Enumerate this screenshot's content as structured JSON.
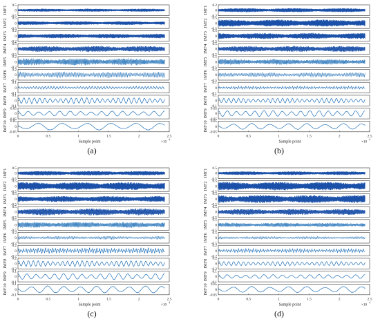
{
  "chart_data": [
    {
      "type": "line",
      "panel_label": "(a)",
      "xlabel": "Sample point",
      "x_exponent_label": "×10",
      "x_exponent_power": "4",
      "x_ticks": [
        "0",
        "0.5",
        "1",
        "1.5",
        "2",
        "2.5"
      ],
      "xlim": [
        0,
        2.5
      ],
      "series": [
        {
          "name": "IMF1",
          "ylim": [
            -0.5,
            0.5
          ],
          "y_ticks": [
            "0.5",
            "0",
            "-0.5"
          ],
          "amplitude": 0.15,
          "cycles": 1400
        },
        {
          "name": "IMF2",
          "ylim": [
            -0.5,
            0.5
          ],
          "y_ticks": [
            "0.5",
            "0",
            "-0.5"
          ],
          "amplitude": 0.18,
          "cycles": 900
        },
        {
          "name": "IMF3",
          "ylim": [
            -0.2,
            0.2
          ],
          "y_ticks": [
            "0.2",
            "0",
            "-0.2"
          ],
          "amplitude": 0.09,
          "cycles": 600
        },
        {
          "name": "IMF4",
          "ylim": [
            -0.5,
            0.5
          ],
          "y_ticks": [
            "0.5",
            "0",
            "-0.5"
          ],
          "amplitude": 0.3,
          "cycles": 400
        },
        {
          "name": "IMF5",
          "ylim": [
            -0.2,
            0.2
          ],
          "y_ticks": [
            "0.2",
            "0",
            "-0.2"
          ],
          "amplitude": 0.14,
          "cycles": 220
        },
        {
          "name": "IMF6",
          "ylim": [
            -0.2,
            0.2
          ],
          "y_ticks": [
            "0.2",
            "0",
            "-0.2"
          ],
          "amplitude": 0.13,
          "cycles": 120
        },
        {
          "name": "IMF7",
          "ylim": [
            -0.1,
            0.1
          ],
          "y_ticks": [
            "0.1",
            "0",
            "-0.1"
          ],
          "amplitude": 0.03,
          "cycles": 50
        },
        {
          "name": "IMF8",
          "ylim": [
            -0.1,
            0.1
          ],
          "y_ticks": [
            "0.1",
            "0",
            "-0.1"
          ],
          "amplitude": 0.06,
          "cycles": 28
        },
        {
          "name": "IMF9",
          "ylim": [
            -0.05,
            0.05
          ],
          "y_ticks": [
            "0.05",
            "0",
            "-0.05"
          ],
          "amplitude": 0.025,
          "cycles": 14
        },
        {
          "name": "IMF10",
          "ylim": [
            -0.05,
            0.05
          ],
          "y_ticks": [
            "0.05",
            "0",
            "-0.05"
          ],
          "amplitude": 0.035,
          "cycles": 6
        }
      ]
    },
    {
      "type": "line",
      "panel_label": "(b)",
      "xlabel": "Sample point",
      "x_exponent_label": "×10",
      "x_exponent_power": "4",
      "x_ticks": [
        "0",
        "0.5",
        "1",
        "1.5",
        "2",
        "2.5"
      ],
      "xlim": [
        0,
        2.5
      ],
      "series": [
        {
          "name": "IMF1",
          "ylim": [
            -0.2,
            0.2
          ],
          "y_ticks": [
            "0.2",
            "0",
            "-0.2"
          ],
          "amplitude": 0.08,
          "cycles": 1400
        },
        {
          "name": "IMF2",
          "ylim": [
            -0.5,
            0.5
          ],
          "y_ticks": [
            "0.5",
            "0",
            "-0.5"
          ],
          "amplitude": 0.35,
          "cycles": 900
        },
        {
          "name": "IMF3",
          "ylim": [
            -0.5,
            0.5
          ],
          "y_ticks": [
            "0.5",
            "0",
            "-0.5"
          ],
          "amplitude": 0.3,
          "cycles": 600
        },
        {
          "name": "IMF4",
          "ylim": [
            -0.5,
            0.5
          ],
          "y_ticks": [
            "0.5",
            "0",
            "-0.5"
          ],
          "amplitude": 0.3,
          "cycles": 400
        },
        {
          "name": "IMF5",
          "ylim": [
            -0.5,
            0.5
          ],
          "y_ticks": [
            "0.5",
            "0",
            "-0.5"
          ],
          "amplitude": 0.28,
          "cycles": 220
        },
        {
          "name": "IMF6",
          "ylim": [
            -0.5,
            0.5
          ],
          "y_ticks": [
            "0.5",
            "0",
            "-0.5"
          ],
          "amplitude": 0.25,
          "cycles": 120
        },
        {
          "name": "IMF7",
          "ylim": [
            -0.1,
            0.1
          ],
          "y_ticks": [
            "0.1",
            "0",
            "-0.1"
          ],
          "amplitude": 0.03,
          "cycles": 60
        },
        {
          "name": "IMF8",
          "ylim": [
            -0.1,
            0.1
          ],
          "y_ticks": [
            "0.1",
            "0",
            "-0.1"
          ],
          "amplitude": 0.05,
          "cycles": 30
        },
        {
          "name": "IMF9",
          "ylim": [
            -0.05,
            0.05
          ],
          "y_ticks": [
            "0.05",
            "0",
            "-0.05"
          ],
          "amplitude": 0.03,
          "cycles": 16
        },
        {
          "name": "IMF10",
          "ylim": [
            -0.05,
            0.05
          ],
          "y_ticks": [
            "0.05",
            "0",
            "-0.05"
          ],
          "amplitude": 0.03,
          "cycles": 8
        }
      ]
    },
    {
      "type": "line",
      "panel_label": "(c)",
      "xlabel": "Sample point",
      "x_exponent_label": "×10",
      "x_exponent_power": "4",
      "x_ticks": [
        "0",
        "0.5",
        "1",
        "1.5",
        "2",
        "2.5"
      ],
      "xlim": [
        0,
        2.5
      ],
      "series": [
        {
          "name": "IMF1",
          "ylim": [
            -0.5,
            0.5
          ],
          "y_ticks": [
            "0.5",
            "0",
            "-0.5"
          ],
          "amplitude": 0.22,
          "cycles": 1400
        },
        {
          "name": "IMF2",
          "ylim": [
            -0.5,
            0.5
          ],
          "y_ticks": [
            "0.5",
            "0",
            "-0.5"
          ],
          "amplitude": 0.4,
          "cycles": 900
        },
        {
          "name": "IMF3",
          "ylim": [
            -0.5,
            0.5
          ],
          "y_ticks": [
            "0.5",
            "0",
            "-0.5"
          ],
          "amplitude": 0.3,
          "cycles": 600
        },
        {
          "name": "IMF4",
          "ylim": [
            -0.5,
            0.5
          ],
          "y_ticks": [
            "0.5",
            "0",
            "-0.5"
          ],
          "amplitude": 0.35,
          "cycles": 400
        },
        {
          "name": "IMF5",
          "ylim": [
            -0.5,
            0.5
          ],
          "y_ticks": [
            "0.5",
            "0",
            "-0.5"
          ],
          "amplitude": 0.3,
          "cycles": 220
        },
        {
          "name": "IMF6",
          "ylim": [
            -0.2,
            0.2
          ],
          "y_ticks": [
            "0.2",
            "0",
            "-0.2"
          ],
          "amplitude": 0.07,
          "cycles": 120
        },
        {
          "name": "IMF7",
          "ylim": [
            -0.2,
            0.2
          ],
          "y_ticks": [
            "0.2",
            "0",
            "-0.2"
          ],
          "amplitude": 0.12,
          "cycles": 60
        },
        {
          "name": "IMF8",
          "ylim": [
            -0.2,
            0.2
          ],
          "y_ticks": [
            "0.2",
            "0",
            "-0.2"
          ],
          "amplitude": 0.12,
          "cycles": 30
        },
        {
          "name": "IMF9",
          "ylim": [
            -0.1,
            0.1
          ],
          "y_ticks": [
            "0.1",
            "0",
            "-0.1"
          ],
          "amplitude": 0.06,
          "cycles": 16
        },
        {
          "name": "IMF10",
          "ylim": [
            -0.1,
            0.1
          ],
          "y_ticks": [
            "0.1",
            "0",
            "-0.1"
          ],
          "amplitude": 0.07,
          "cycles": 9
        }
      ]
    },
    {
      "type": "line",
      "panel_label": "(d)",
      "xlabel": "Sample point",
      "x_exponent_label": "×10",
      "x_exponent_power": "4",
      "x_ticks": [
        "0",
        "0.5",
        "1",
        "1.5",
        "2",
        "2.5"
      ],
      "xlim": [
        0,
        2.5
      ],
      "series": [
        {
          "name": "IMF1",
          "ylim": [
            -0.5,
            0.5
          ],
          "y_ticks": [
            "0.5",
            "0",
            "-0.5"
          ],
          "amplitude": 0.18,
          "cycles": 1400
        },
        {
          "name": "IMF2",
          "ylim": [
            -0.5,
            0.5
          ],
          "y_ticks": [
            "0.5",
            "0",
            "-0.5"
          ],
          "amplitude": 0.42,
          "cycles": 900
        },
        {
          "name": "IMF3",
          "ylim": [
            -0.5,
            0.5
          ],
          "y_ticks": [
            "0.5",
            "0",
            "-0.5"
          ],
          "amplitude": 0.4,
          "cycles": 600
        },
        {
          "name": "IMF4",
          "ylim": [
            -0.5,
            0.5
          ],
          "y_ticks": [
            "0.5",
            "0",
            "-0.5"
          ],
          "amplitude": 0.3,
          "cycles": 400
        },
        {
          "name": "IMF5",
          "ylim": [
            -0.5,
            0.5
          ],
          "y_ticks": [
            "0.5",
            "0",
            "-0.5"
          ],
          "amplitude": 0.22,
          "cycles": 220
        },
        {
          "name": "IMF6",
          "ylim": [
            -0.5,
            0.5
          ],
          "y_ticks": [
            "0.5",
            "0",
            "-0.5"
          ],
          "amplitude": 0.15,
          "cycles": 120
        },
        {
          "name": "IMF7",
          "ylim": [
            -0.2,
            0.2
          ],
          "y_ticks": [
            "0.2",
            "0",
            "-0.2"
          ],
          "amplitude": 0.08,
          "cycles": 60
        },
        {
          "name": "IMF8",
          "ylim": [
            -0.2,
            0.2
          ],
          "y_ticks": [
            "0.2",
            "0",
            "-0.2"
          ],
          "amplitude": 0.09,
          "cycles": 30
        },
        {
          "name": "IMF9",
          "ylim": [
            -0.1,
            0.1
          ],
          "y_ticks": [
            "0.1",
            "0",
            "-0.1"
          ],
          "amplitude": 0.04,
          "cycles": 16
        },
        {
          "name": "IMF10",
          "ylim": [
            -0.05,
            0.05
          ],
          "y_ticks": [
            "0.05",
            "0",
            "-0.05"
          ],
          "amplitude": 0.03,
          "cycles": 8
        }
      ]
    }
  ],
  "colors": {
    "trace": "#1f6fb8",
    "trace_dense": "#1a4fa8",
    "axis": "#333333",
    "text": "#222222"
  }
}
